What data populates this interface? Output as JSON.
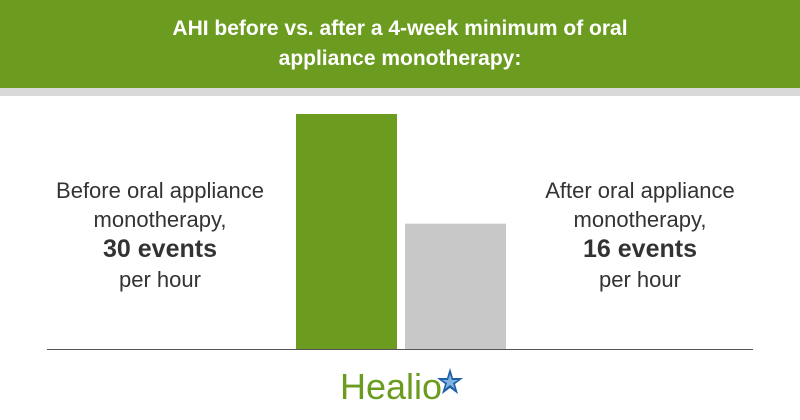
{
  "chart_data": {
    "type": "bar",
    "title": "AHI before vs. after a 4-week minimum of oral appliance monotherapy:",
    "categories": [
      "Before oral appliance monotherapy,",
      "After oral appliance monotherapy,"
    ],
    "values": [
      30,
      16
    ],
    "value_labels": [
      "30 events",
      "16 events"
    ],
    "unit_label": "per hour",
    "colors": [
      "#6b9c1f",
      "#c8c8c8"
    ],
    "ylim": [
      0,
      30
    ]
  },
  "logo": "Healio"
}
